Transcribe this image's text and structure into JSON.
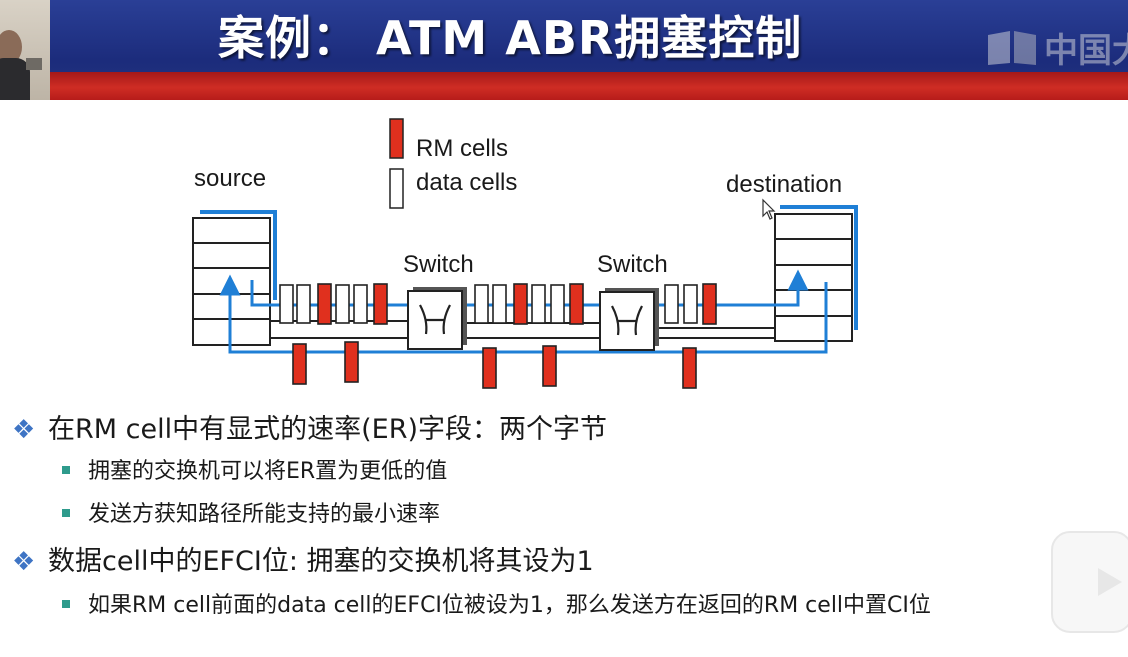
{
  "slide": {
    "title": "案例： ATM ABR拥塞控制",
    "watermark": "中国大",
    "colors": {
      "header_blue": "#23358a",
      "header_red": "#c62a22",
      "rm_cell": "#e0301e",
      "link_blue": "#1f7fd6",
      "bullet_blue": "#3e74c4",
      "subbullet_teal": "#2e9b8c"
    }
  },
  "diagram": {
    "legend": {
      "rm_label": "RM cells",
      "data_label": "data cells"
    },
    "source_label": "source",
    "destination_label": "destination",
    "switch1_label": "Switch",
    "switch2_label": "Switch"
  },
  "bullets": [
    {
      "text": "在RM cell中有显式的速率(ER)字段：两个字节",
      "sub": [
        "拥塞的交换机可以将ER置为更低的值",
        "发送方获知路径所能支持的最小速率"
      ]
    },
    {
      "text": "数据cell中的EFCI位: 拥塞的交换机将其设为1",
      "sub": [
        "如果RM cell前面的data cell的EFCI位被设为1，那么发送方在返回的RM cell中置CI位"
      ]
    }
  ],
  "icons": [
    "diamond-bullet-icon",
    "square-bullet-icon",
    "switch-icon",
    "play-icon",
    "mouse-cursor-icon"
  ]
}
